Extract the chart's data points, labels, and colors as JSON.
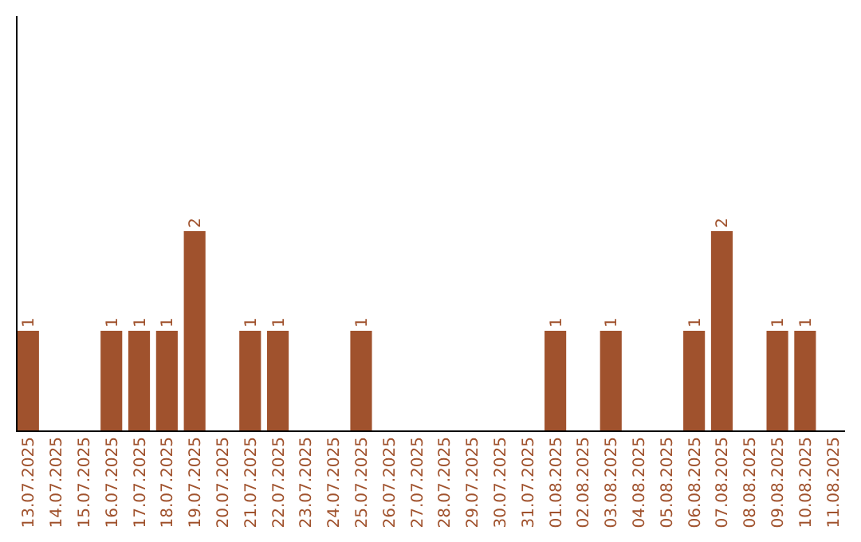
{
  "chart_data": {
    "type": "bar",
    "categories": [
      "13.07.2025",
      "14.07.2025",
      "15.07.2025",
      "16.07.2025",
      "17.07.2025",
      "18.07.2025",
      "19.07.2025",
      "20.07.2025",
      "21.07.2025",
      "22.07.2025",
      "23.07.2025",
      "24.07.2025",
      "25.07.2025",
      "26.07.2025",
      "27.07.2025",
      "28.07.2025",
      "29.07.2025",
      "30.07.2025",
      "31.07.2025",
      "01.08.2025",
      "02.08.2025",
      "03.08.2025",
      "04.08.2025",
      "05.08.2025",
      "06.08.2025",
      "07.08.2025",
      "08.08.2025",
      "09.08.2025",
      "10.08.2025",
      "11.08.2025"
    ],
    "values": [
      1,
      0,
      0,
      1,
      1,
      1,
      2,
      0,
      1,
      1,
      0,
      0,
      1,
      0,
      0,
      0,
      0,
      0,
      0,
      1,
      0,
      1,
      0,
      0,
      1,
      2,
      0,
      1,
      1,
      0
    ],
    "value_labels": [
      "1",
      null,
      null,
      "1",
      "1",
      "1",
      "2",
      null,
      "1",
      "1",
      null,
      null,
      "1",
      null,
      null,
      null,
      null,
      null,
      null,
      "1",
      null,
      "1",
      null,
      null,
      "1",
      "2",
      null,
      "1",
      "1",
      null
    ],
    "color": "#a0522d"
  }
}
